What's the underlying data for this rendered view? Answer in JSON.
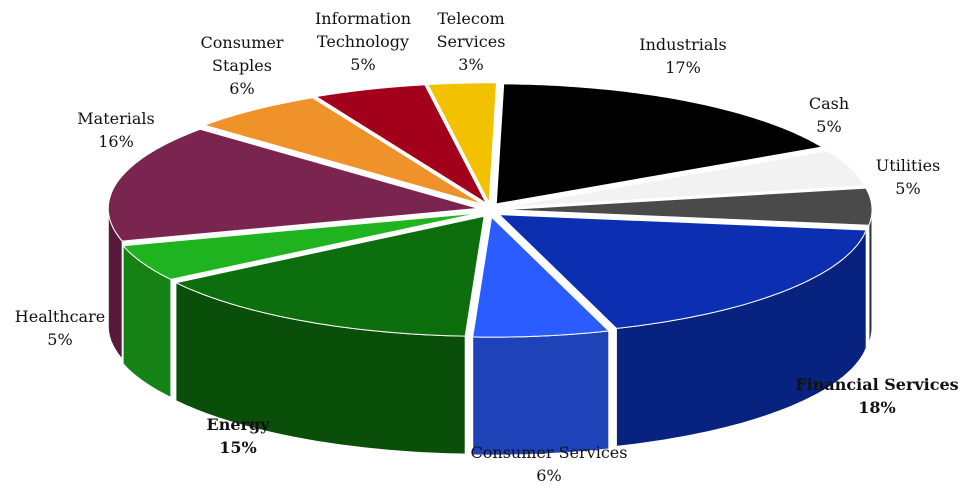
{
  "chart_data": {
    "type": "pie",
    "title": "",
    "slices": [
      {
        "label": "Industrials",
        "value": 17,
        "value_label": "17%",
        "color": "#000000",
        "bold": false
      },
      {
        "label": "Cash",
        "value": 5,
        "value_label": "5%",
        "color": "#f2f2f2",
        "bold": false
      },
      {
        "label": "Utilities",
        "value": 5,
        "value_label": "5%",
        "color": "#4a4a4a",
        "bold": false
      },
      {
        "label": "Financial Services",
        "value": 18,
        "value_label": "18%",
        "color": "#0b2fb0",
        "bold": true
      },
      {
        "label": "Consumer Services",
        "value": 6,
        "value_label": "6%",
        "color": "#2a5cff",
        "bold": false
      },
      {
        "label": "Energy",
        "value": 15,
        "value_label": "15%",
        "color": "#0d6e0d",
        "bold": true
      },
      {
        "label": "Healthcare",
        "value": 5,
        "value_label": "5%",
        "color": "#1fb41f",
        "bold": false
      },
      {
        "label": "Materials",
        "value": 16,
        "value_label": "16%",
        "color": "#7a2450",
        "bold": false
      },
      {
        "label": "Consumer Staples",
        "value": 6,
        "value_label": "6%",
        "color": "#f0922a",
        "bold": false
      },
      {
        "label": "Information Technology",
        "value": 5,
        "value_label": "5%",
        "color": "#a3001c",
        "bold": false
      },
      {
        "label": "Telecom Services",
        "value": 3,
        "value_label": "3%",
        "color": "#f2c200",
        "bold": false
      }
    ]
  }
}
